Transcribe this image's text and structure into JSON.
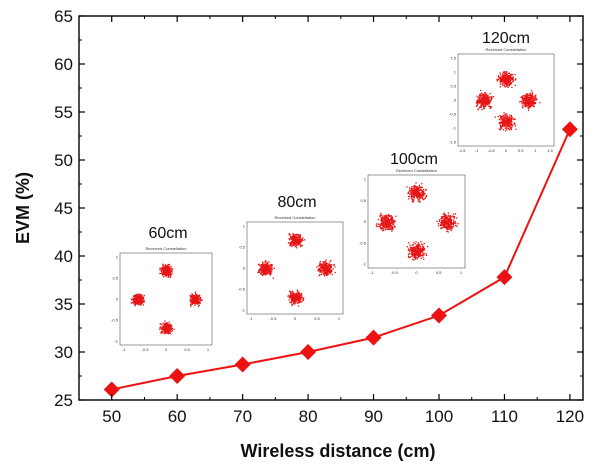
{
  "chart_data": {
    "type": "line",
    "title": "",
    "xlabel": "Wireless distance (cm)",
    "ylabel": "EVM (%)",
    "xlim": [
      45,
      122
    ],
    "ylim": [
      25,
      65
    ],
    "xticks": [
      50,
      60,
      70,
      80,
      90,
      100,
      110,
      120
    ],
    "yticks": [
      25,
      30,
      35,
      40,
      45,
      50,
      55,
      60,
      65
    ],
    "x": [
      50,
      60,
      70,
      80,
      90,
      100,
      110,
      120
    ],
    "series": [
      {
        "values": [
          26.1,
          27.5,
          28.7,
          30.0,
          31.5,
          33.8,
          37.8,
          53.2
        ],
        "color": "#ee1111",
        "marker": "diamond"
      }
    ],
    "grid": false,
    "legend": "none",
    "annotations": [
      {
        "label": "60cm",
        "panel_title": "Received Constellation",
        "xticks": [
          "-1",
          "-0.5",
          "0",
          "0.5",
          "1"
        ],
        "yticks": [
          "1",
          "0.5",
          "0",
          "-0.5",
          "-1"
        ]
      },
      {
        "label": "80cm",
        "panel_title": "Received Constellation",
        "xticks": [
          "-1",
          "-0.5",
          "0",
          "0.5",
          "1"
        ],
        "yticks": [
          "1",
          "0.5",
          "0",
          "-0.5",
          "-1"
        ]
      },
      {
        "label": "100cm",
        "panel_title": "Received Constellation",
        "xticks": [
          "-1",
          "-0.5",
          "0",
          "0.5",
          "1"
        ],
        "yticks": [
          "1",
          "0.5",
          "0",
          "-0.5",
          "-1"
        ]
      },
      {
        "label": "120cm",
        "panel_title": "Received Constellation",
        "xticks": [
          "-1.5",
          "-1",
          "-0.5",
          "0",
          "0.5",
          "1",
          "1.5"
        ],
        "yticks": [
          "1.5",
          "1",
          "0.5",
          "0",
          "-0.5",
          "-1",
          "-1.5"
        ]
      }
    ]
  }
}
